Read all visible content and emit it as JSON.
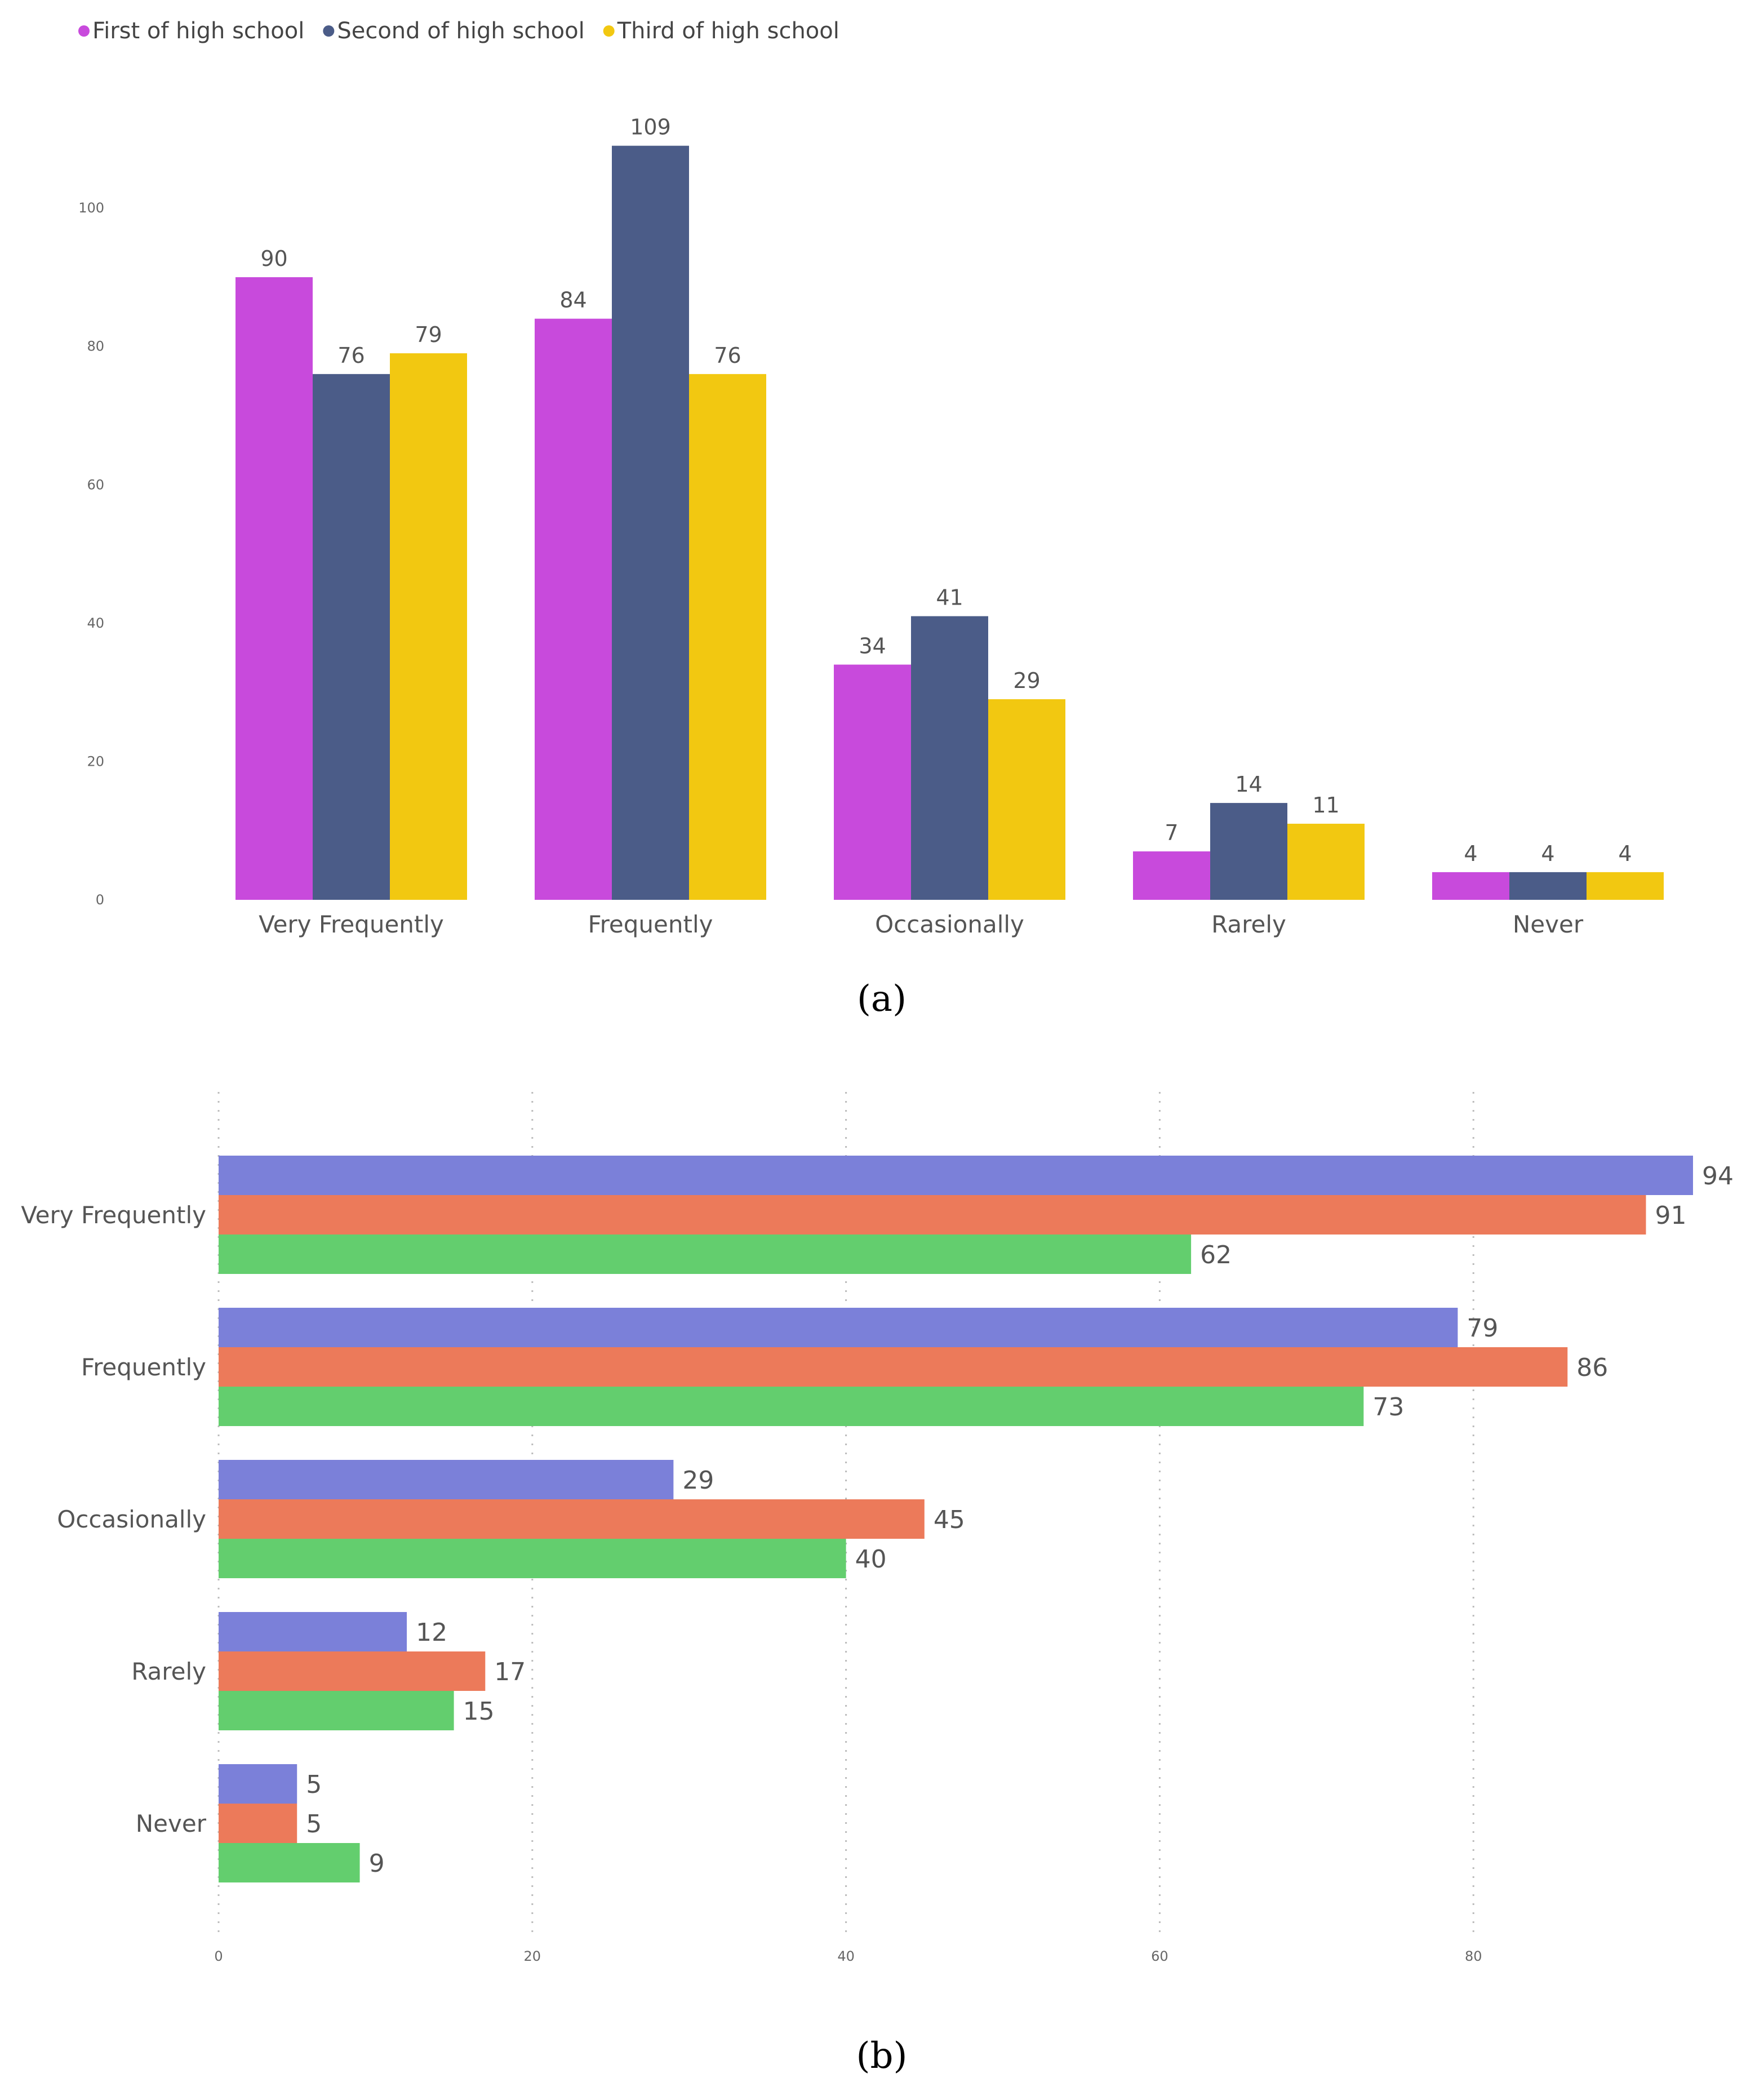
{
  "chart_data": [
    {
      "type": "bar",
      "orientation": "vertical",
      "caption": "(a)",
      "categories": [
        "Very Frequently",
        "Frequently",
        "Occasionally",
        "Rarely",
        "Never"
      ],
      "series": [
        {
          "name": "First of high school",
          "color": "#C84ADC",
          "values": [
            90,
            84,
            34,
            7,
            4
          ]
        },
        {
          "name": "Second of high school",
          "color": "#4B5C88",
          "values": [
            76,
            109,
            41,
            14,
            4
          ]
        },
        {
          "name": "Third of high school",
          "color": "#F2C811",
          "values": [
            79,
            76,
            29,
            11,
            4
          ]
        }
      ],
      "y_ticks": [
        0,
        20,
        40,
        60,
        80,
        100
      ],
      "ylim": [
        0,
        115
      ],
      "grid": false,
      "legend": "top-left"
    },
    {
      "type": "bar",
      "orientation": "horizontal",
      "caption": "(b)",
      "categories": [
        "Very Frequently",
        "Frequently",
        "Occasionally",
        "Rarely",
        "Never"
      ],
      "series": [
        {
          "name": "First of high school",
          "color": "#7B80D9",
          "values": [
            94,
            79,
            29,
            12,
            5
          ]
        },
        {
          "name": "Second of high school",
          "color": "#EC7A5A",
          "values": [
            91,
            86,
            45,
            17,
            5
          ]
        },
        {
          "name": "Third of high school",
          "color": "#63CE6E",
          "values": [
            62,
            73,
            40,
            15,
            9
          ]
        }
      ],
      "x_ticks": [
        0,
        20,
        40,
        60,
        80
      ],
      "xlim": [
        0,
        94
      ],
      "grid": true,
      "legend": "top-left"
    }
  ]
}
